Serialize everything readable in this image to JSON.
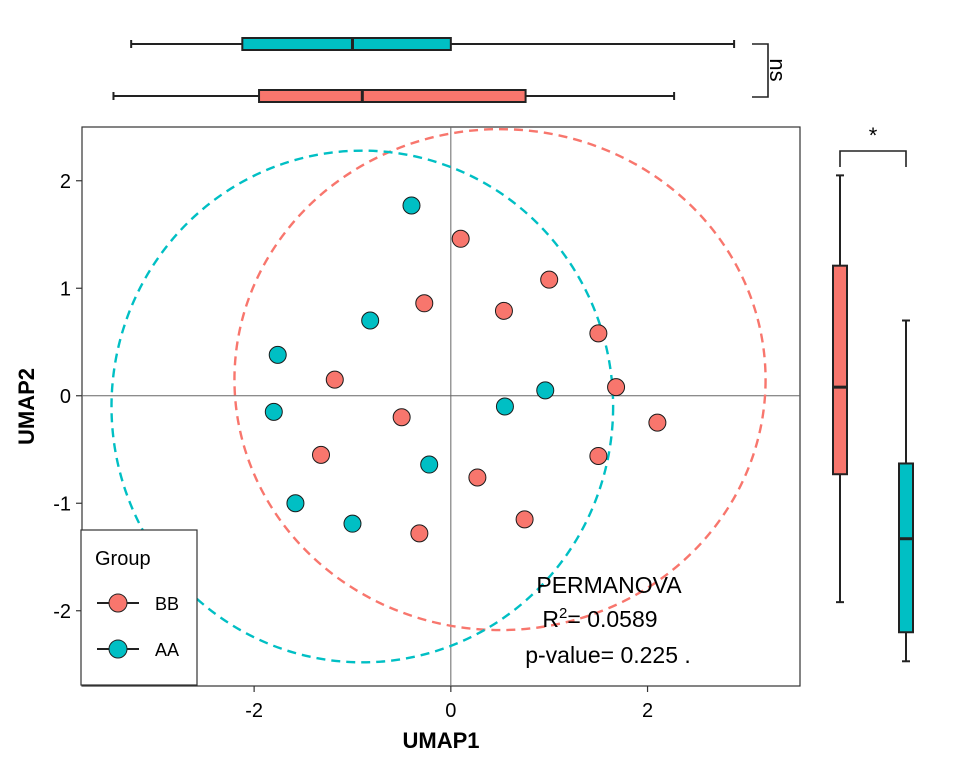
{
  "chart_data": {
    "type": "scatter",
    "xlabel": "UMAP1",
    "ylabel": "UMAP2",
    "xlim": [
      -3.75,
      3.55
    ],
    "ylim": [
      -2.7,
      2.5
    ],
    "xticks": [
      -2,
      0,
      2
    ],
    "yticks": [
      -2,
      -1,
      0,
      1,
      2
    ],
    "xtick_labels": [
      "-2",
      "0",
      "2"
    ],
    "ytick_labels": [
      "-2",
      "-1",
      "0",
      "1",
      "2"
    ],
    "reference_lines": {
      "x": 0,
      "y": 0
    },
    "legend": {
      "title": "Group",
      "placement": "bottom-left",
      "items": [
        {
          "key": "BB",
          "label": "BB"
        },
        {
          "key": "AA",
          "label": "AA"
        }
      ]
    },
    "series": [
      {
        "key": "BB",
        "name": "BB",
        "color": "#F8766D",
        "points": [
          [
            0.1,
            1.46
          ],
          [
            1.0,
            1.08
          ],
          [
            -0.27,
            0.86
          ],
          [
            0.54,
            0.79
          ],
          [
            1.5,
            0.58
          ],
          [
            -1.18,
            0.15
          ],
          [
            1.68,
            0.08
          ],
          [
            -0.5,
            -0.2
          ],
          [
            2.1,
            -0.25
          ],
          [
            -1.32,
            -0.55
          ],
          [
            1.5,
            -0.56
          ],
          [
            0.27,
            -0.76
          ],
          [
            0.75,
            -1.15
          ],
          [
            -0.32,
            -1.28
          ]
        ],
        "ellipse": {
          "center": [
            0.5,
            0.15
          ],
          "rx": 2.7,
          "ry": 2.33
        }
      },
      {
        "key": "AA",
        "name": "AA",
        "color": "#00BFC4",
        "points": [
          [
            -0.4,
            1.77
          ],
          [
            -0.82,
            0.7
          ],
          [
            -1.76,
            0.38
          ],
          [
            0.96,
            0.05
          ],
          [
            -1.8,
            -0.15
          ],
          [
            0.55,
            -0.1
          ],
          [
            -0.22,
            -0.64
          ],
          [
            -1.58,
            -1.0
          ],
          [
            -1.0,
            -1.19
          ]
        ],
        "ellipse": {
          "center": [
            -0.9,
            -0.1
          ],
          "rx": 2.55,
          "ry": 2.38
        }
      }
    ],
    "boxplots": {
      "top_x": {
        "AA": {
          "min": -3.25,
          "q1": -2.12,
          "median": -1.0,
          "q3": 0.0,
          "max": 2.88
        },
        "BB": {
          "min": -3.43,
          "q1": -1.95,
          "median": -0.9,
          "q3": 0.76,
          "max": 2.27
        },
        "significance": "ns"
      },
      "right_y": {
        "BB": {
          "min": -1.92,
          "q1": -0.73,
          "median": 0.08,
          "q3": 1.21,
          "max": 2.05
        },
        "AA": {
          "min": -2.47,
          "q1": -2.2,
          "median": -1.33,
          "q3": -0.63,
          "max": 0.7
        },
        "significance": "*"
      }
    },
    "annotation": {
      "line1": "PERMANOVA",
      "r2_base": "R",
      "r2_sup": "2",
      "r2_value": "= 0.0589",
      "pvalue": "p-value= 0.225 ."
    }
  }
}
